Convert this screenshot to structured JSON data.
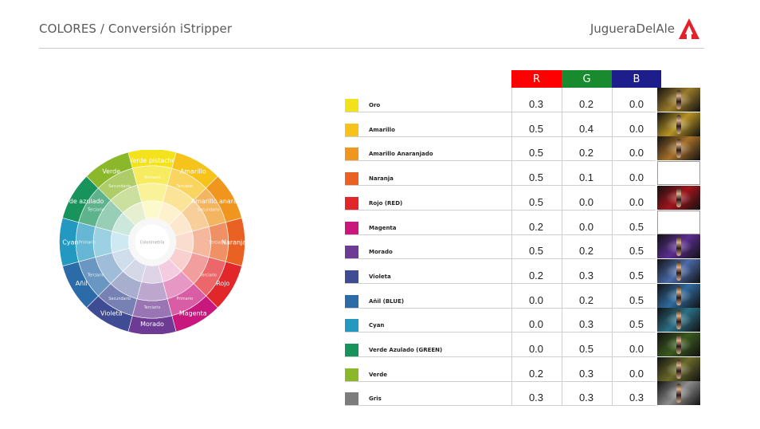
{
  "header": {
    "title": "COLORES / Conversión iStripper",
    "brand": "JugueraDelAle"
  },
  "wheel": {
    "labels": [
      "Verde pistacho",
      "Amarillo",
      "Amarillo anaranjado",
      "Naranja",
      "Rojo",
      "Magenta",
      "Morado",
      "Violeta",
      "Añil",
      "Cyan",
      "Verde azulado",
      "Verde"
    ],
    "inner_labels": [
      "Terciario",
      "Terciario",
      "Secundario",
      "Terciario",
      "Terciario",
      "Primario",
      "Terciario",
      "Secundario",
      "Terciario",
      "Primario",
      "Terciario",
      "Secundario"
    ],
    "center_label": "Colorimetría"
  },
  "table": {
    "headers": {
      "r": "R",
      "g": "G",
      "b": "B"
    },
    "header_colors": {
      "r": "#ff0000",
      "g": "#1a8a2e",
      "b": "#1d1d8c"
    },
    "rows": [
      {
        "name": "Oro",
        "color": "#f2e21b",
        "r": "0.3",
        "g": "0.2",
        "b": "0.0",
        "thumb": "#9a7a2a"
      },
      {
        "name": "Amarillo",
        "color": "#f6c21b",
        "r": "0.5",
        "g": "0.4",
        "b": "0.0",
        "thumb": "#b59225"
      },
      {
        "name": "Amarillo Anaranjado",
        "color": "#f0951e",
        "r": "0.5",
        "g": "0.2",
        "b": "0.0",
        "thumb": "#a5702a"
      },
      {
        "name": "Naranja",
        "color": "#ea6223",
        "r": "0.5",
        "g": "0.1",
        "b": "0.0",
        "thumb": ""
      },
      {
        "name": "Rojo (RED)",
        "color": "#e2272a",
        "r": "0.5",
        "g": "0.0",
        "b": "0.0",
        "thumb": "#a0141c"
      },
      {
        "name": "Magenta",
        "color": "#c9187d",
        "r": "0.2",
        "g": "0.0",
        "b": "0.5",
        "thumb": ""
      },
      {
        "name": "Morado",
        "color": "#6d3b93",
        "r": "0.5",
        "g": "0.2",
        "b": "0.5",
        "thumb": "#5b2e90"
      },
      {
        "name": "Violeta",
        "color": "#3f4c93",
        "r": "0.2",
        "g": "0.3",
        "b": "0.5",
        "thumb": "#4a6aa8"
      },
      {
        "name": "Añil (BLUE)",
        "color": "#2b6ba8",
        "r": "0.0",
        "g": "0.2",
        "b": "0.5",
        "thumb": "#2f6a9c"
      },
      {
        "name": "Cyan",
        "color": "#2399c2",
        "r": "0.0",
        "g": "0.3",
        "b": "0.5",
        "thumb": "#2b6f85"
      },
      {
        "name": "Verde Azulado (GREEN)",
        "color": "#19935c",
        "r": "0.0",
        "g": "0.5",
        "b": "0.0",
        "thumb": "#3b5a1f"
      },
      {
        "name": "Verde",
        "color": "#8bb82a",
        "r": "0.2",
        "g": "0.3",
        "b": "0.0",
        "thumb": "#6a6a2a"
      },
      {
        "name": "Gris",
        "color": "#7c7c7c",
        "r": "0.3",
        "g": "0.3",
        "b": "0.3",
        "thumb": "#8c8c8c"
      }
    ]
  }
}
